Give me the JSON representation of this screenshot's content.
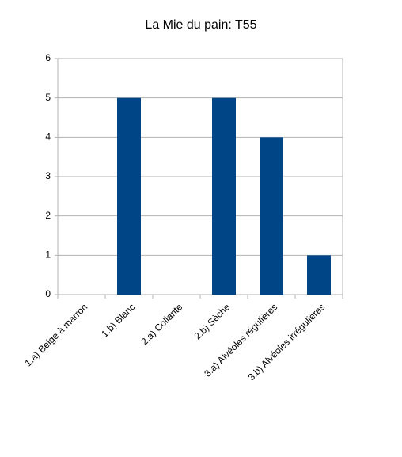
{
  "chart_data": {
    "type": "bar",
    "title": "La Mie du pain: T55",
    "categories": [
      "1.a) Beige à marron",
      "1.b) Blanc",
      "2.a) Collante",
      "2.b) Sèche",
      "3.a) Alvéoles régulières",
      "3.b) Alvéoles irrégulières"
    ],
    "values": [
      0,
      5,
      0,
      5,
      4,
      1
    ],
    "color": "#004586",
    "ylim": [
      0,
      6
    ],
    "yticks": [
      0,
      1,
      2,
      3,
      4,
      5,
      6
    ],
    "grid": true
  }
}
